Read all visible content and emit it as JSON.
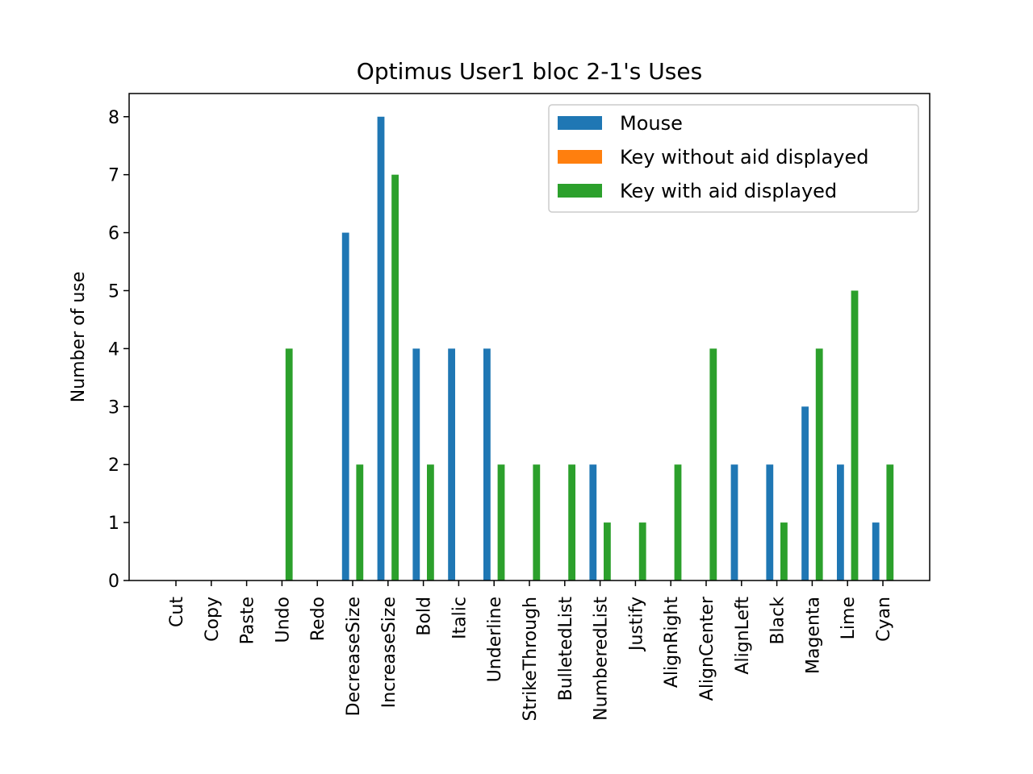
{
  "chart_data": {
    "type": "bar",
    "title": "Optimus User1 bloc 2-1's Uses",
    "xlabel": "",
    "ylabel": "Number of use",
    "ylim": [
      0,
      8.4
    ],
    "yticks": [
      0,
      1,
      2,
      3,
      4,
      5,
      6,
      7,
      8
    ],
    "grid": false,
    "legend_position": "top-right",
    "categories": [
      "Cut",
      "Copy",
      "Paste",
      "Undo",
      "Redo",
      "DecreaseSize",
      "IncreaseSize",
      "Bold",
      "Italic",
      "Underline",
      "StrikeThrough",
      "BulletedList",
      "NumberedList",
      "Justify",
      "AlignRight",
      "AlignCenter",
      "AlignLeft",
      "Black",
      "Magenta",
      "Lime",
      "Cyan"
    ],
    "series": [
      {
        "name": "Mouse",
        "color": "#1f77b4",
        "values": [
          0,
          0,
          0,
          0,
          0,
          6,
          8,
          4,
          4,
          4,
          0,
          0,
          2,
          0,
          0,
          0,
          2,
          2,
          3,
          2,
          1
        ]
      },
      {
        "name": "Key without aid displayed",
        "color": "#ff7f0e",
        "values": [
          0,
          0,
          0,
          0,
          0,
          0,
          0,
          0,
          0,
          0,
          0,
          0,
          0,
          0,
          0,
          0,
          0,
          0,
          0,
          0,
          0
        ]
      },
      {
        "name": "Key with aid displayed",
        "color": "#2ca02c",
        "values": [
          0,
          0,
          0,
          4,
          0,
          2,
          7,
          2,
          0,
          2,
          2,
          2,
          1,
          1,
          2,
          4,
          0,
          1,
          4,
          5,
          2
        ]
      }
    ]
  }
}
